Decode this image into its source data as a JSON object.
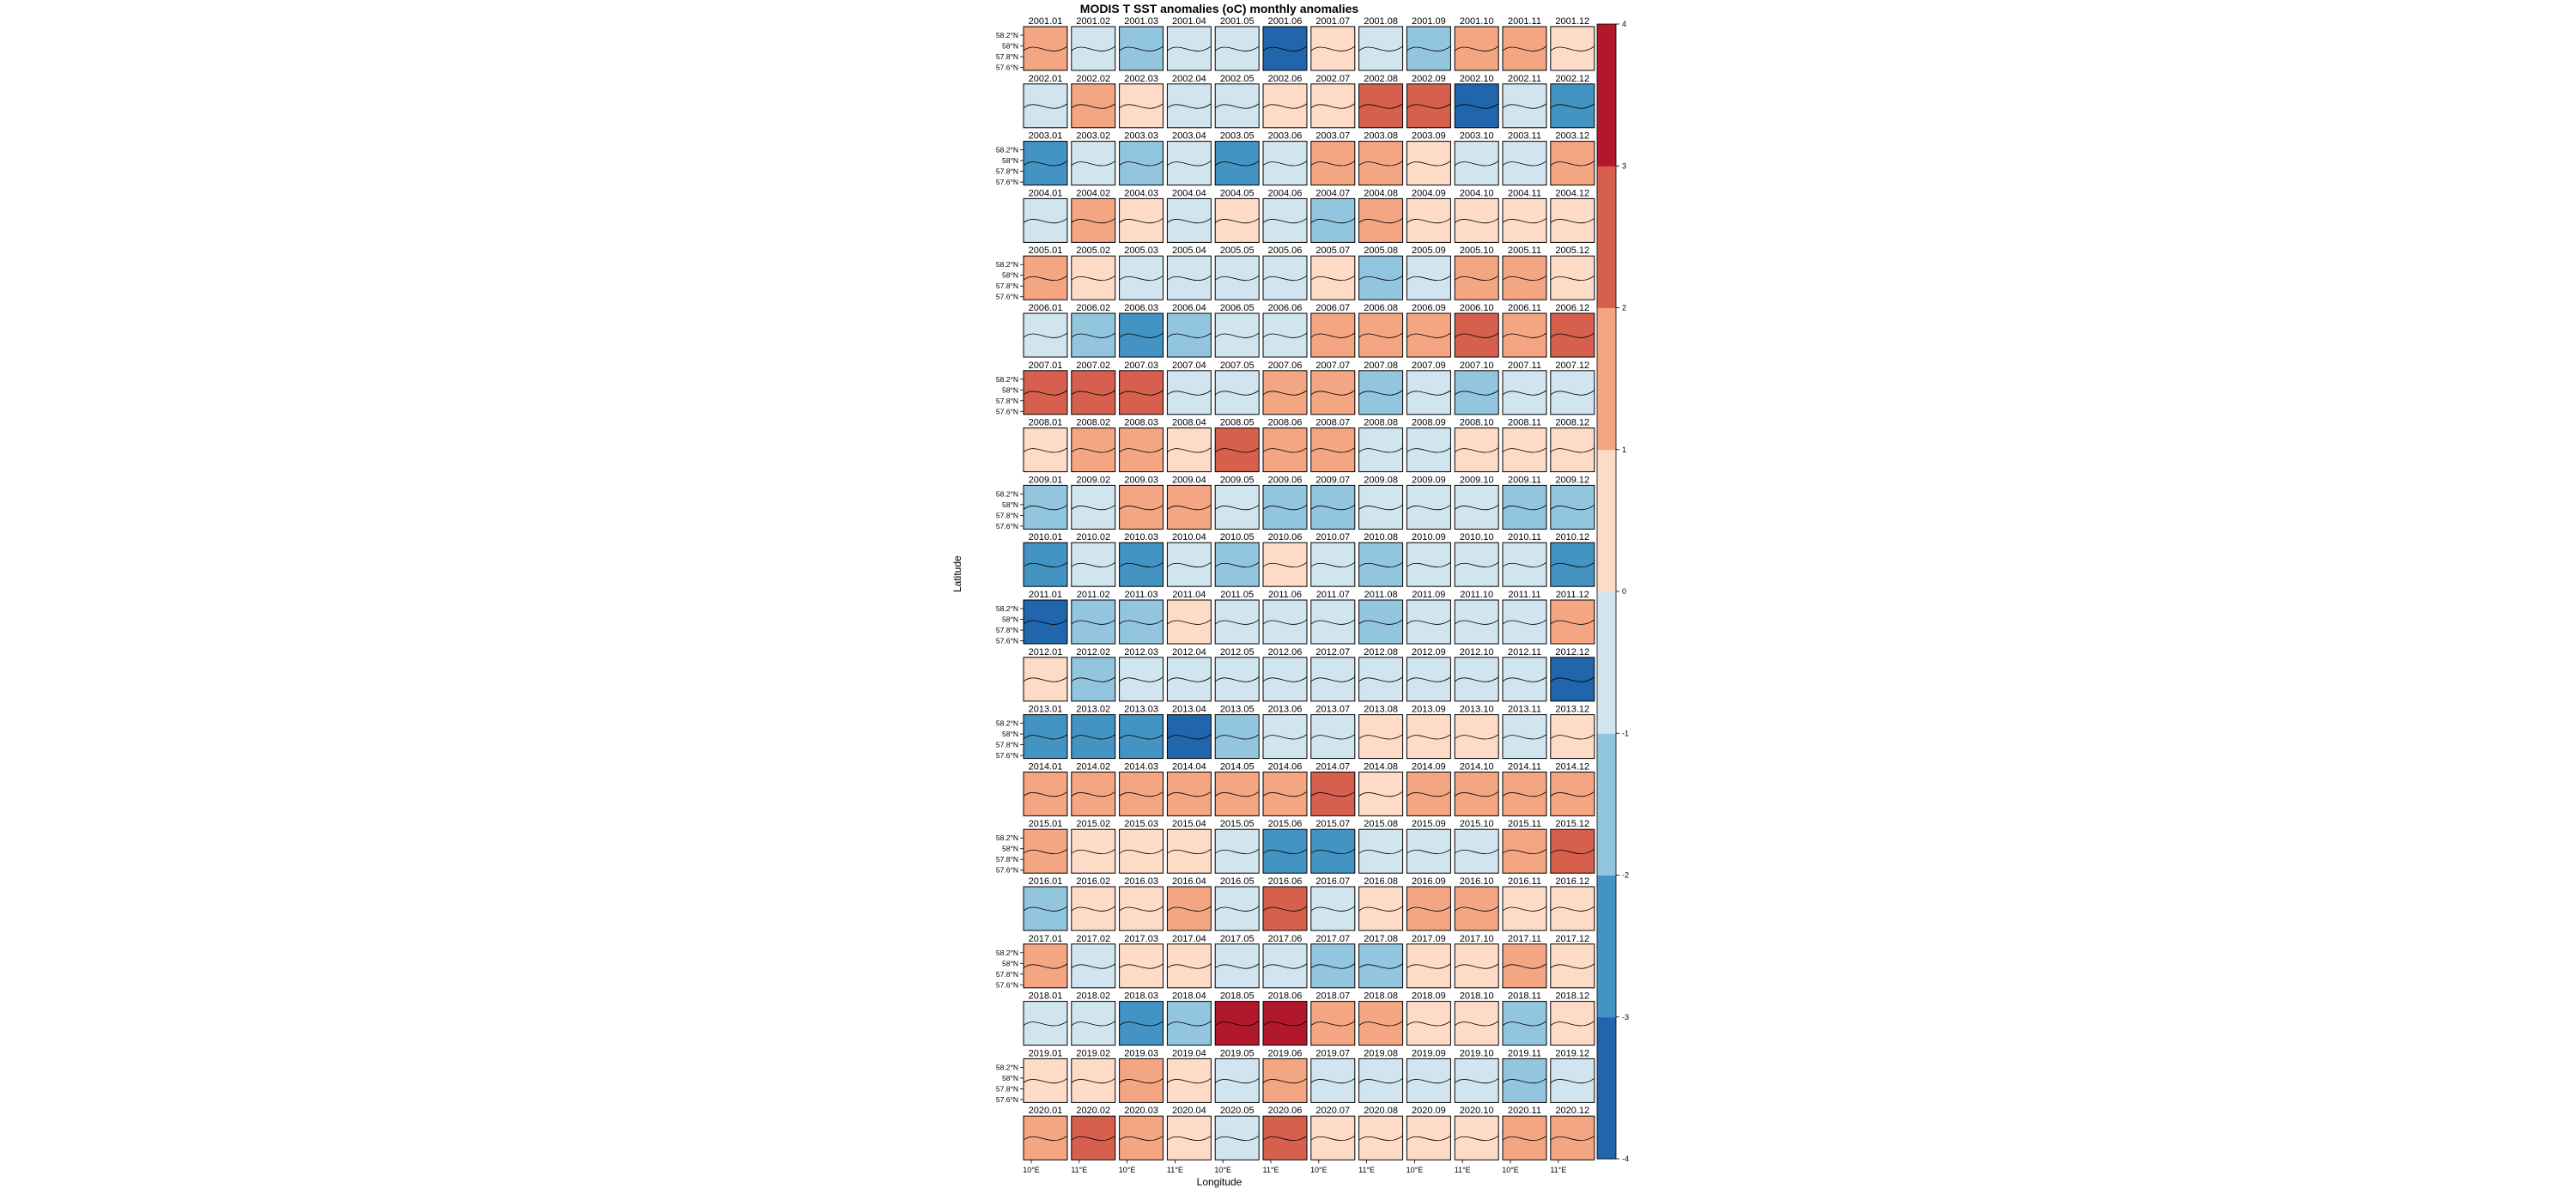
{
  "chart_data": {
    "type": "heatmap",
    "title": "MODIS T SST anomalies (oC) monthly anomalies",
    "xlabel": "Longitude",
    "ylabel": "Latitude",
    "lat_tick_labels": [
      "58.2°N",
      "58°N",
      "57.8°N",
      "57.6°N"
    ],
    "lon_tick_labels": [
      "10°E",
      "11°E"
    ],
    "colorbar": {
      "range": [
        -4,
        4
      ],
      "ticks": [
        -4,
        -3,
        -2,
        -1,
        0,
        1,
        2,
        3,
        4
      ],
      "tick_labels": [
        "-4",
        "-3",
        "-2",
        "-1",
        "0",
        "1",
        "2",
        "3",
        "4"
      ],
      "colors": [
        "#2166ac",
        "#4393c3",
        "#92c5de",
        "#d1e5f0",
        "#fddbc7",
        "#f4a582",
        "#d6604d",
        "#b2182b"
      ]
    },
    "years": [
      2001,
      2002,
      2003,
      2004,
      2005,
      2006,
      2007,
      2008,
      2009,
      2010,
      2011,
      2012,
      2013,
      2014,
      2015,
      2016,
      2017,
      2018,
      2019,
      2020
    ],
    "months": [
      "01",
      "02",
      "03",
      "04",
      "05",
      "06",
      "07",
      "08",
      "09",
      "10",
      "11",
      "12"
    ],
    "mean_anomaly_by_year": [
      [
        1.2,
        -0.2,
        -1.2,
        -0.8,
        -0.3,
        -3.4,
        0.3,
        -0.3,
        -1.5,
        1.5,
        1.2,
        0.8
      ],
      [
        -0.6,
        1.2,
        0.8,
        -0.5,
        -0.4,
        0.5,
        0.6,
        2.0,
        2.1,
        -3.1,
        -1.0,
        -2.7
      ],
      [
        -2.6,
        -1.0,
        -1.3,
        -0.4,
        -2.3,
        -0.7,
        1.3,
        1.6,
        0.8,
        -0.6,
        -0.4,
        1.0
      ],
      [
        -0.8,
        1.2,
        0.5,
        -0.5,
        0.7,
        -1.0,
        -1.6,
        1.5,
        0.4,
        0.4,
        0.5,
        0.4
      ],
      [
        1.2,
        0.6,
        -1.0,
        -0.5,
        -0.5,
        -0.4,
        0.5,
        -1.2,
        -0.5,
        1.4,
        1.8,
        0.5
      ],
      [
        -0.9,
        -1.2,
        -2.8,
        -1.3,
        -0.6,
        -0.8,
        1.4,
        1.3,
        1.3,
        2.5,
        1.5,
        2.0
      ],
      [
        2.6,
        2.3,
        2.1,
        -0.4,
        -0.8,
        1.2,
        1.4,
        -1.2,
        -1.0,
        -1.1,
        -0.3,
        -1.0
      ],
      [
        0.6,
        1.3,
        1.5,
        0.5,
        2.4,
        1.6,
        1.2,
        -0.8,
        -0.8,
        0.3,
        0.4,
        0.4
      ],
      [
        -1.1,
        -0.9,
        1.2,
        1.1,
        -0.5,
        -1.1,
        -1.3,
        -0.9,
        -0.8,
        -0.7,
        -1.4,
        -1.5
      ],
      [
        -3.0,
        -0.6,
        -2.4,
        -0.6,
        -1.2,
        0.5,
        -0.8,
        -1.1,
        -1.0,
        -0.5,
        -0.7,
        -3.0
      ],
      [
        -3.1,
        -1.5,
        -1.1,
        0.6,
        -0.7,
        -0.8,
        -0.7,
        -1.1,
        -0.7,
        -0.7,
        -0.8,
        1.3
      ],
      [
        0.8,
        -1.2,
        -0.9,
        -0.4,
        -0.9,
        -1.0,
        -0.6,
        -0.4,
        -0.6,
        -0.4,
        -1.0,
        -3.4
      ],
      [
        -2.5,
        -2.6,
        -3.0,
        -3.5,
        -1.3,
        -0.4,
        -0.3,
        0.3,
        0.4,
        0.4,
        -0.3,
        0.5
      ],
      [
        1.3,
        1.5,
        1.7,
        1.5,
        1.7,
        1.4,
        2.2,
        0.5,
        1.4,
        1.8,
        1.4,
        1.8
      ],
      [
        1.6,
        0.6,
        0.3,
        0.7,
        -0.8,
        -2.4,
        -2.5,
        -0.8,
        -0.4,
        -0.3,
        1.4,
        2.4
      ],
      [
        -1.7,
        0.5,
        0.3,
        1.1,
        -0.8,
        2.3,
        -0.5,
        0.8,
        1.4,
        1.2,
        0.7,
        0.5
      ],
      [
        1.3,
        -0.4,
        0.8,
        0.3,
        -0.8,
        -0.9,
        -1.2,
        -1.1,
        0.5,
        0.4,
        1.0,
        0.6
      ],
      [
        -0.7,
        -0.8,
        -2.6,
        -1.8,
        3.1,
        3.3,
        1.6,
        1.3,
        0.4,
        0.4,
        -2.0,
        0.5
      ],
      [
        0.9,
        0.6,
        1.6,
        0.5,
        -0.5,
        1.2,
        -0.4,
        -0.6,
        -0.5,
        -0.5,
        -1.3,
        -0.6
      ],
      [
        1.4,
        2.2,
        1.2,
        0.6,
        -0.4,
        2.0,
        0.8,
        0.3,
        0.7,
        0.5,
        1.6,
        1.7
      ]
    ]
  }
}
